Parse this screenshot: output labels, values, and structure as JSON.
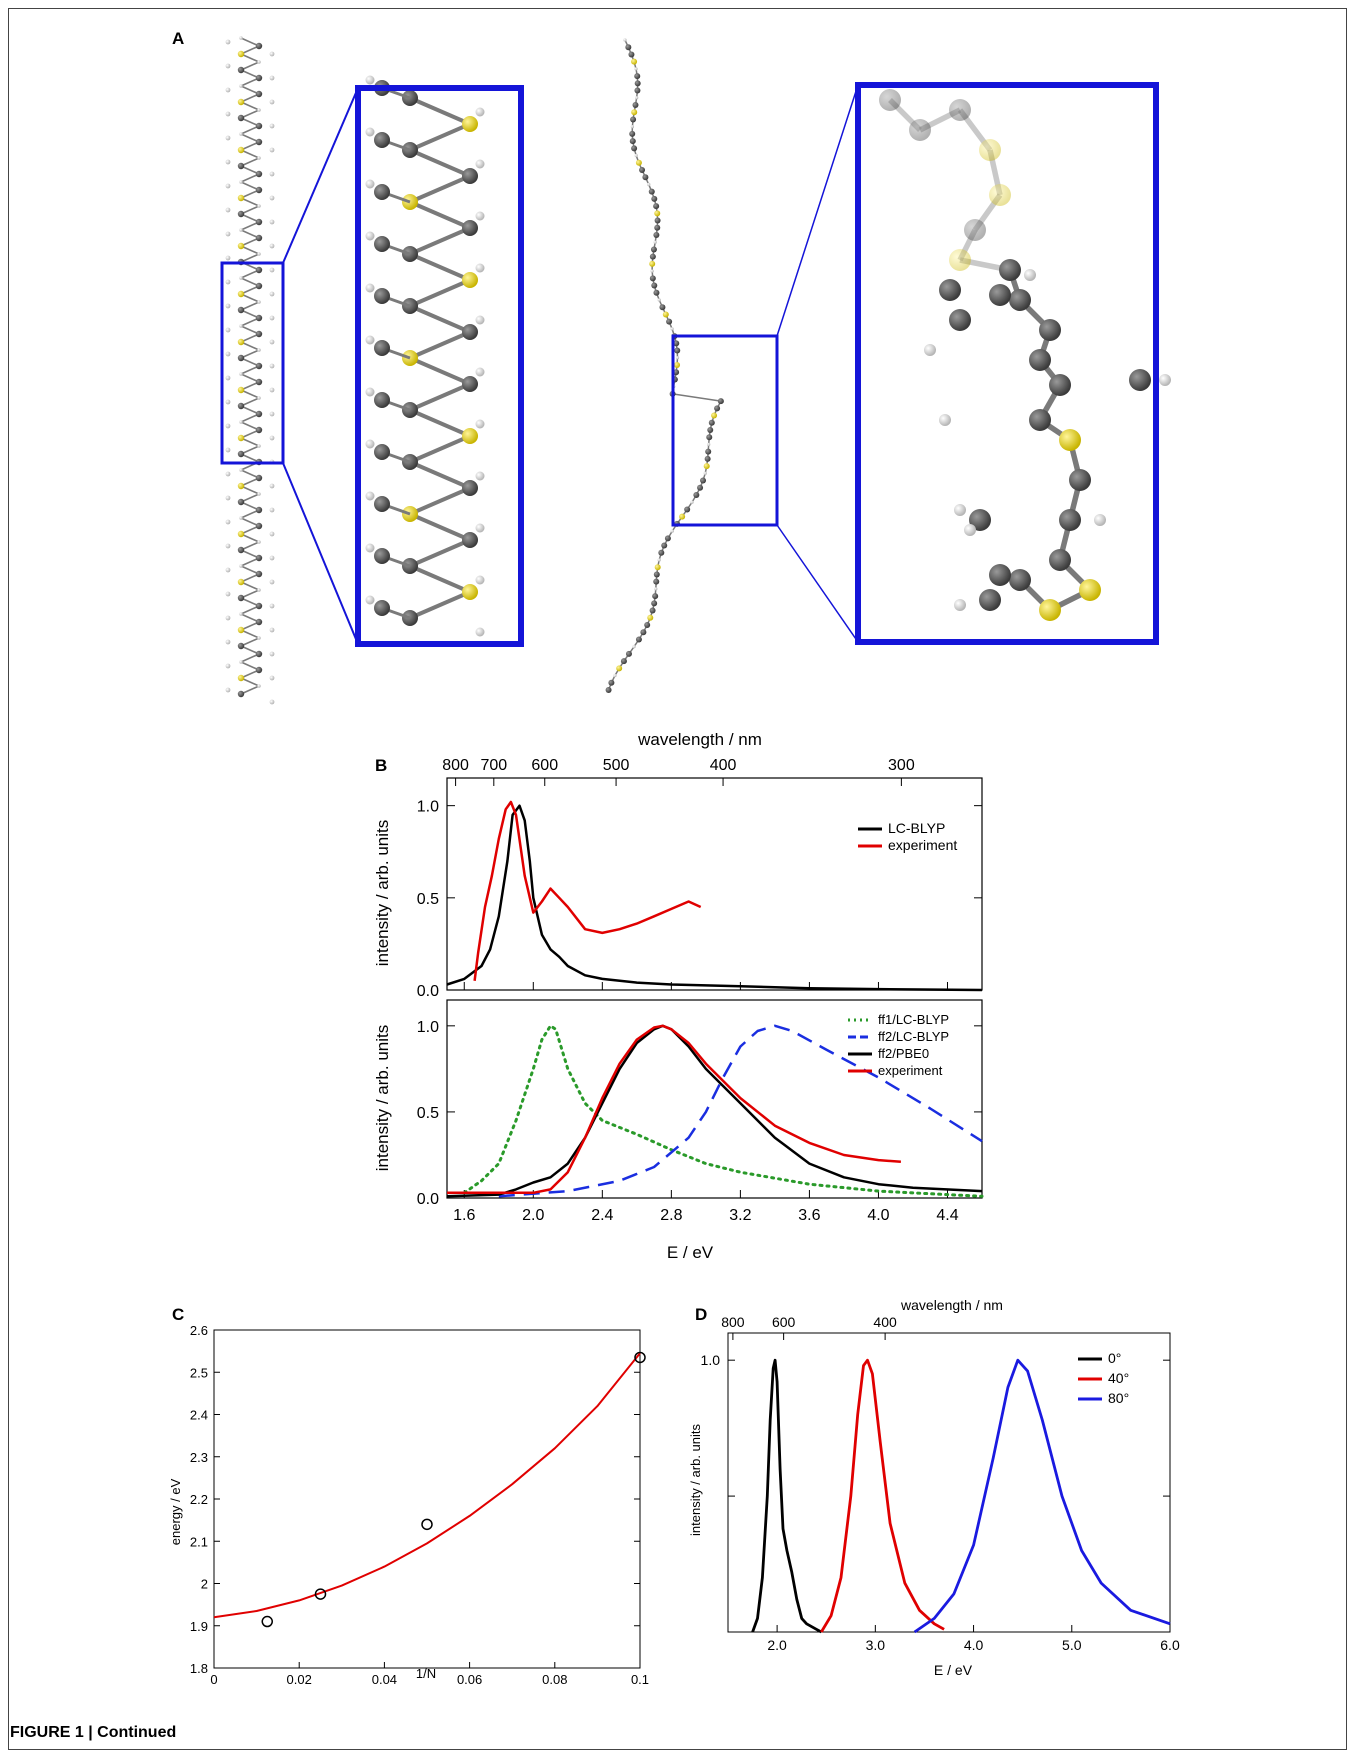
{
  "panels": {
    "A": {
      "label": "A"
    },
    "B": {
      "label": "B",
      "top_axis_label": "wavelength / nm",
      "top_ticks": [
        "800",
        "700",
        "600",
        "500",
        "400",
        "300"
      ],
      "bottom_axis_label": "E / eV",
      "ylabel": "intensity / arb. units",
      "upper_legend": [
        "LC-BLYP",
        "experiment"
      ],
      "lower_legend": [
        "ff1/LC-BLYP",
        "ff2/LC-BLYP",
        "ff2/PBE0",
        "experiment"
      ]
    },
    "C": {
      "label": "C",
      "xlabel": "1/N",
      "ylabel": "energy / eV"
    },
    "D": {
      "label": "D",
      "top_axis_label": "wavelength / nm",
      "top_ticks": [
        "800",
        "600",
        "400"
      ],
      "xlabel": "E / eV",
      "ylabel": "intensity / arb. units",
      "legend": [
        "0°",
        "40°",
        "80°"
      ]
    }
  },
  "caption": "FIGURE 1 | Continued",
  "chart_data": [
    {
      "type": "line",
      "panel": "B-upper",
      "xlabel": "E / eV",
      "ylabel": "intensity / arb. units",
      "xlim": [
        1.5,
        4.6
      ],
      "ylim": [
        0,
        1.15
      ],
      "yticks": [
        0.0,
        0.5,
        1.0
      ],
      "legend_position": "right",
      "series": [
        {
          "name": "LC-BLYP",
          "color": "#000000",
          "x": [
            1.5,
            1.6,
            1.7,
            1.75,
            1.8,
            1.85,
            1.88,
            1.92,
            1.95,
            1.98,
            2.0,
            2.05,
            2.1,
            2.15,
            2.2,
            2.3,
            2.4,
            2.6,
            2.8,
            3.2,
            3.6,
            4.0,
            4.6
          ],
          "y": [
            0.03,
            0.06,
            0.13,
            0.22,
            0.4,
            0.7,
            0.95,
            1.0,
            0.92,
            0.7,
            0.5,
            0.3,
            0.22,
            0.18,
            0.13,
            0.08,
            0.06,
            0.04,
            0.03,
            0.02,
            0.01,
            0.005,
            0.0
          ]
        },
        {
          "name": "experiment",
          "color": "#e00000",
          "x": [
            1.66,
            1.68,
            1.72,
            1.76,
            1.8,
            1.84,
            1.87,
            1.9,
            1.95,
            2.0,
            2.05,
            2.1,
            2.15,
            2.2,
            2.3,
            2.4,
            2.5,
            2.6,
            2.7,
            2.8,
            2.9,
            2.97
          ],
          "y": [
            0.05,
            0.2,
            0.45,
            0.62,
            0.82,
            0.98,
            1.02,
            0.95,
            0.62,
            0.42,
            0.48,
            0.55,
            0.5,
            0.45,
            0.33,
            0.31,
            0.33,
            0.36,
            0.4,
            0.44,
            0.48,
            0.45
          ]
        }
      ]
    },
    {
      "type": "line",
      "panel": "B-lower",
      "xlabel": "E / eV",
      "ylabel": "intensity / arb. units",
      "xlim": [
        1.5,
        4.6
      ],
      "ylim": [
        0,
        1.15
      ],
      "xticks": [
        1.6,
        2.0,
        2.4,
        2.8,
        3.2,
        3.6,
        4.0,
        4.4
      ],
      "yticks": [
        0.0,
        0.5,
        1.0
      ],
      "legend_position": "top-right",
      "series": [
        {
          "name": "ff1/LC-BLYP",
          "color": "#2a9a2a",
          "dash": "dotted",
          "x": [
            1.6,
            1.7,
            1.8,
            1.9,
            2.0,
            2.05,
            2.1,
            2.13,
            2.2,
            2.3,
            2.4,
            2.6,
            2.8,
            3.0,
            3.2,
            3.6,
            4.0,
            4.4,
            4.6
          ],
          "y": [
            0.03,
            0.1,
            0.2,
            0.45,
            0.75,
            0.92,
            1.0,
            0.98,
            0.75,
            0.55,
            0.45,
            0.37,
            0.28,
            0.2,
            0.15,
            0.08,
            0.04,
            0.02,
            0.01
          ]
        },
        {
          "name": "ff2/LC-BLYP",
          "color": "#1a2ee0",
          "dash": "dashed",
          "x": [
            1.8,
            2.2,
            2.5,
            2.7,
            2.9,
            3.0,
            3.1,
            3.2,
            3.3,
            3.4,
            3.5,
            3.7,
            4.0,
            4.3,
            4.6
          ],
          "y": [
            0.01,
            0.04,
            0.1,
            0.18,
            0.35,
            0.5,
            0.7,
            0.88,
            0.97,
            1.0,
            0.97,
            0.86,
            0.7,
            0.52,
            0.33
          ]
        },
        {
          "name": "ff2/PBE0",
          "color": "#000000",
          "x": [
            1.5,
            1.8,
            1.9,
            2.0,
            2.1,
            2.2,
            2.3,
            2.4,
            2.5,
            2.6,
            2.7,
            2.75,
            2.8,
            2.9,
            3.0,
            3.2,
            3.4,
            3.6,
            3.8,
            4.0,
            4.2,
            4.6
          ],
          "y": [
            0.01,
            0.02,
            0.05,
            0.09,
            0.12,
            0.2,
            0.35,
            0.55,
            0.75,
            0.9,
            0.98,
            1.0,
            0.98,
            0.88,
            0.75,
            0.55,
            0.35,
            0.2,
            0.12,
            0.08,
            0.06,
            0.04
          ]
        },
        {
          "name": "experiment",
          "color": "#e00000",
          "x": [
            1.5,
            1.9,
            2.0,
            2.1,
            2.2,
            2.3,
            2.4,
            2.5,
            2.6,
            2.7,
            2.75,
            2.8,
            2.9,
            3.0,
            3.2,
            3.4,
            3.6,
            3.8,
            4.0,
            4.13
          ],
          "y": [
            0.03,
            0.03,
            0.03,
            0.05,
            0.15,
            0.35,
            0.58,
            0.78,
            0.92,
            0.99,
            1.0,
            0.98,
            0.9,
            0.78,
            0.58,
            0.42,
            0.32,
            0.25,
            0.22,
            0.21
          ]
        }
      ]
    },
    {
      "type": "scatter",
      "panel": "C",
      "xlabel": "1/N",
      "ylabel": "energy / eV",
      "xlim": [
        0,
        0.1
      ],
      "ylim": [
        1.8,
        2.6
      ],
      "xticks": [
        0,
        0.02,
        0.04,
        0.06,
        0.08,
        0.1
      ],
      "xtick_labels": [
        "0",
        "0.02",
        "0.04",
        "0.06",
        "0.08",
        "0.1"
      ],
      "yticks": [
        1.8,
        1.9,
        2.0,
        2.1,
        2.2,
        2.3,
        2.4,
        2.5,
        2.6
      ],
      "ytick_labels": [
        "1.8",
        "1.9",
        "2",
        "2.1",
        "2.2",
        "2.3",
        "2.4",
        "2.5",
        "2.6"
      ],
      "points": {
        "x": [
          0.0125,
          0.025,
          0.05,
          0.1
        ],
        "y": [
          1.91,
          1.975,
          2.14,
          2.535
        ]
      },
      "fit": {
        "color": "#e00000",
        "x": [
          0,
          0.01,
          0.02,
          0.03,
          0.04,
          0.05,
          0.06,
          0.07,
          0.08,
          0.09,
          0.1
        ],
        "y": [
          1.92,
          1.935,
          1.96,
          1.995,
          2.04,
          2.095,
          2.16,
          2.235,
          2.32,
          2.42,
          2.545
        ]
      }
    },
    {
      "type": "line",
      "panel": "D",
      "xlabel": "E / eV",
      "ylabel": "intensity / arb. units",
      "xlim": [
        1.5,
        6.0
      ],
      "ylim": [
        0,
        1.1
      ],
      "xticks": [
        2.0,
        3.0,
        4.0,
        5.0,
        6.0
      ],
      "xtick_labels": [
        "2.0",
        "3.0",
        "4.0",
        "5.0",
        "6.0"
      ],
      "yticks": [
        0.5,
        1.0
      ],
      "ytick_labels": [
        "",
        "1.0"
      ],
      "legend_position": "top-right",
      "series": [
        {
          "name": "0°",
          "color": "#000000",
          "x": [
            1.75,
            1.8,
            1.85,
            1.9,
            1.93,
            1.96,
            1.98,
            2.0,
            2.03,
            2.06,
            2.1,
            2.15,
            2.2,
            2.25,
            2.3,
            2.4,
            2.45
          ],
          "y": [
            0.0,
            0.05,
            0.2,
            0.5,
            0.78,
            0.97,
            1.0,
            0.92,
            0.6,
            0.38,
            0.3,
            0.22,
            0.12,
            0.05,
            0.03,
            0.01,
            0.0
          ]
        },
        {
          "name": "40°",
          "color": "#e00000",
          "x": [
            2.45,
            2.55,
            2.65,
            2.75,
            2.82,
            2.88,
            2.92,
            2.97,
            3.05,
            3.15,
            3.3,
            3.45,
            3.6,
            3.7
          ],
          "y": [
            0.0,
            0.06,
            0.2,
            0.5,
            0.8,
            0.98,
            1.0,
            0.95,
            0.7,
            0.4,
            0.18,
            0.08,
            0.03,
            0.01
          ]
        },
        {
          "name": "80°",
          "color": "#1a1ae0",
          "x": [
            3.4,
            3.6,
            3.8,
            4.0,
            4.2,
            4.35,
            4.45,
            4.55,
            4.7,
            4.9,
            5.1,
            5.3,
            5.6,
            6.0
          ],
          "y": [
            0.0,
            0.05,
            0.14,
            0.32,
            0.64,
            0.9,
            1.0,
            0.96,
            0.78,
            0.5,
            0.3,
            0.18,
            0.08,
            0.03
          ]
        }
      ]
    }
  ]
}
